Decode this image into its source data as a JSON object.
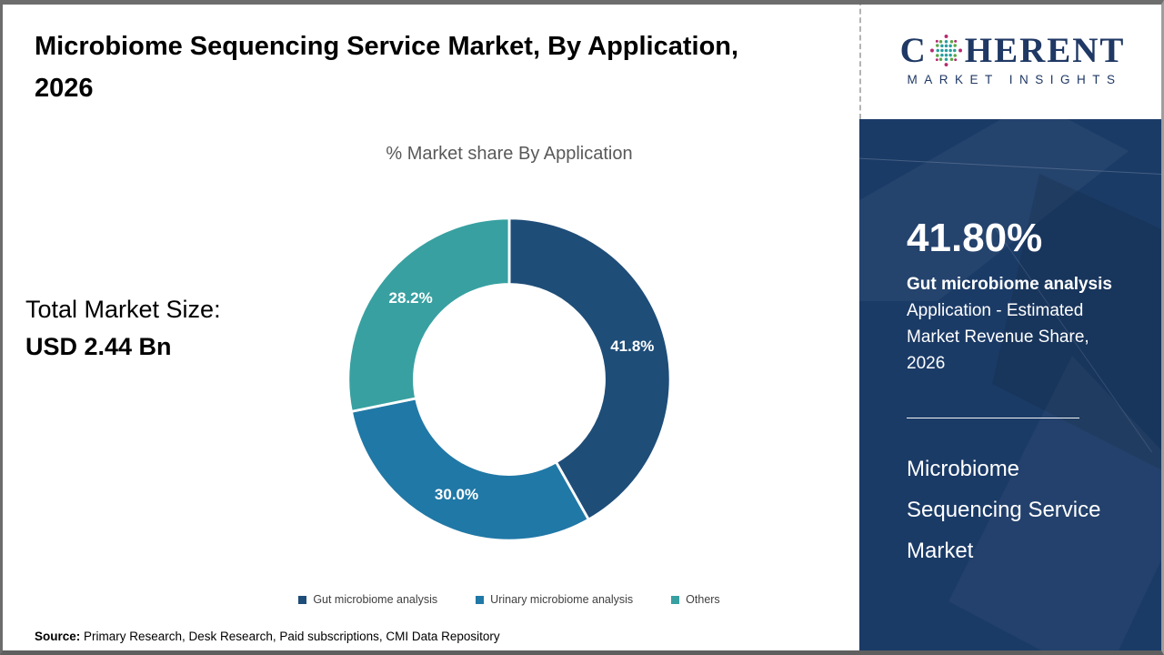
{
  "header": {
    "title": "Microbiome Sequencing Service Market, By Application, 2026"
  },
  "chart_data": {
    "type": "pie",
    "subtype": "donut",
    "title": "% Market share By Application",
    "categories": [
      "Gut microbiome analysis",
      "Urinary microbiome analysis",
      "Others"
    ],
    "values": [
      41.8,
      30.0,
      28.2
    ],
    "data_labels": [
      "41.8%",
      "30.0%",
      "28.2%"
    ],
    "colors": [
      "#1e4d78",
      "#2078a6",
      "#38a0a1"
    ],
    "start_angle_deg": 0,
    "direction": "clockwise",
    "donut_hole_ratio": 0.59,
    "legend_position": "bottom"
  },
  "left_panel": {
    "total_label": "Total Market Size:",
    "total_value": "USD 2.44 Bn"
  },
  "sidebar": {
    "logo": {
      "brand_c": "C",
      "brand_rest": "HERENT",
      "brand_sub": "MARKET INSIGHTS",
      "dot_colors": {
        "magenta": "#b52a6e",
        "green": "#5aa646",
        "teal": "#2a9d9f"
      },
      "text_color": "#1f3864"
    },
    "panel_bg": "#1b3b67",
    "stat_value": "41.80%",
    "stat_title": "Gut microbiome analysis",
    "stat_desc": "Application - Estimated Market Revenue Share, 2026",
    "market_name": "Microbiome Sequencing Service Market"
  },
  "footer": {
    "source_label": "Source:",
    "source_text": " Primary Research, Desk Research, Paid subscriptions, CMI Data Repository"
  }
}
